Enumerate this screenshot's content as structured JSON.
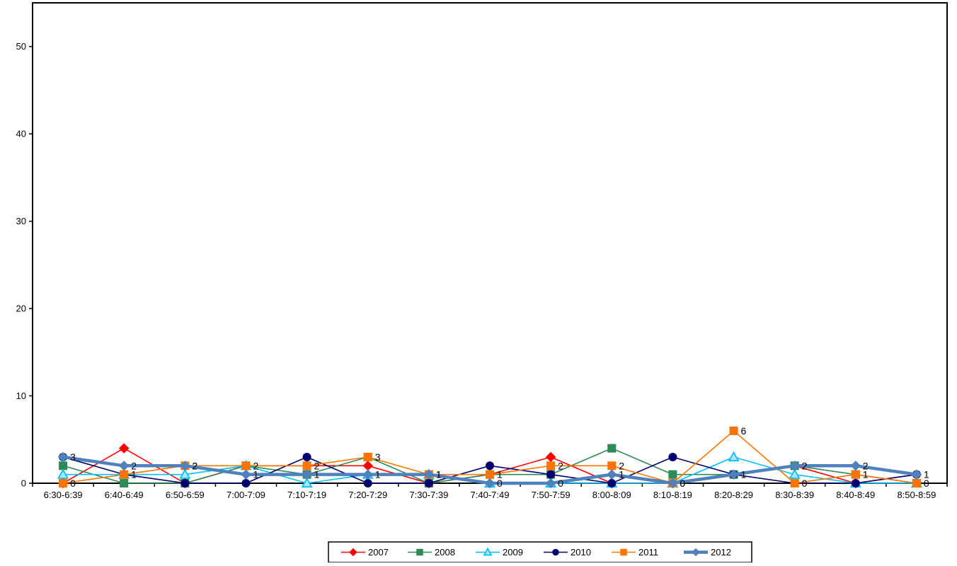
{
  "chart_data": {
    "type": "line",
    "title": "",
    "xlabel": "",
    "ylabel": "",
    "ylim": [
      0,
      55
    ],
    "yticks": [
      0,
      10,
      20,
      30,
      40,
      50
    ],
    "grid": false,
    "legend_position": "bottom-center",
    "categories": [
      "6:30-6:39",
      "6:40-6:49",
      "6:50-6:59",
      "7:00-7:09",
      "7:10-7:19",
      "7:20-7:29",
      "7:30-7:39",
      "7:40-7:49",
      "7:50-7:59",
      "8:00-8:09",
      "8:10-8:19",
      "8:20-8:29",
      "8:30-8:39",
      "8:40-8:49",
      "8:50-8:59"
    ],
    "series": [
      {
        "name": "2007",
        "color": "#ff0000",
        "marker": "diamond",
        "width": 1.6,
        "values": [
          0,
          4,
          0,
          2,
          2,
          2,
          0,
          1,
          3,
          0,
          0,
          1,
          2,
          0,
          1
        ]
      },
      {
        "name": "2008",
        "color": "#2e8b57",
        "marker": "square",
        "width": 1.6,
        "values": [
          2,
          0,
          0,
          2,
          1,
          3,
          0,
          1,
          1,
          4,
          1,
          1,
          2,
          1,
          0
        ]
      },
      {
        "name": "2009",
        "color": "#00bfff",
        "marker": "triangle",
        "width": 1.6,
        "values": [
          1,
          1,
          1,
          2,
          0,
          1,
          1,
          0,
          0,
          0,
          0,
          3,
          1,
          0,
          0
        ]
      },
      {
        "name": "2010",
        "color": "#00006e",
        "marker": "circle",
        "width": 1.6,
        "values": [
          3,
          1,
          0,
          0,
          3,
          0,
          0,
          2,
          1,
          0,
          3,
          1,
          0,
          0,
          1
        ]
      },
      {
        "name": "2011",
        "color": "#ff7400",
        "marker": "square",
        "width": 1.6,
        "values": [
          0,
          1,
          2,
          2,
          2,
          3,
          1,
          1,
          2,
          2,
          0,
          6,
          0,
          1,
          0
        ]
      },
      {
        "name": "2012",
        "color": "#4f81bd",
        "marker": "diamond",
        "width": 4.5,
        "values": [
          3,
          2,
          2,
          1,
          1,
          1,
          1,
          0,
          0,
          1,
          0,
          1,
          2,
          2,
          1
        ]
      }
    ],
    "labeled_series": [
      "2011",
      "2012"
    ]
  }
}
